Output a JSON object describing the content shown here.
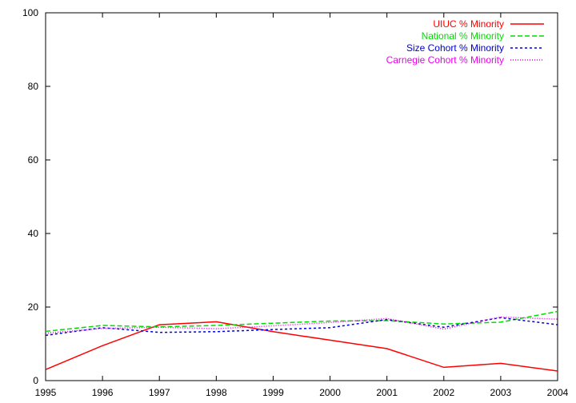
{
  "chart_data": {
    "type": "line",
    "title": "",
    "xlabel": "",
    "ylabel": "",
    "x": [
      1995,
      1996,
      1997,
      1998,
      1999,
      2000,
      2001,
      2002,
      2003,
      2004
    ],
    "xlim": [
      1995,
      2004
    ],
    "ylim": [
      0,
      100
    ],
    "xticks": [
      "1995",
      "1996",
      "1997",
      "1998",
      "1999",
      "2000",
      "2001",
      "2002",
      "2003",
      "2004"
    ],
    "yticks": [
      "0",
      "20",
      "40",
      "60",
      "80",
      "100"
    ],
    "grid": false,
    "legend_position": "top-right",
    "series": [
      {
        "name": "UIUC % Minority",
        "color": "#ff0000",
        "dash": "solid",
        "values": [
          3.0,
          9.5,
          15.2,
          16.0,
          13.3,
          11.0,
          8.7,
          3.6,
          4.7,
          2.6
        ]
      },
      {
        "name": "National % Minority",
        "color": "#00dd00",
        "dash": "dashed",
        "values": [
          13.4,
          15.0,
          14.6,
          15.0,
          15.6,
          16.2,
          16.3,
          15.4,
          15.9,
          18.8
        ]
      },
      {
        "name": "Size Cohort % Minority",
        "color": "#0000cc",
        "dash": "dotted",
        "values": [
          12.3,
          14.4,
          13.1,
          13.3,
          13.9,
          14.4,
          16.6,
          14.5,
          17.1,
          15.2
        ]
      },
      {
        "name": "Carnegie Cohort % Minority",
        "color": "#ee00ee",
        "dash": "fine-dotted",
        "values": [
          12.9,
          14.2,
          14.5,
          14.1,
          14.9,
          15.8,
          16.9,
          14.0,
          17.3,
          16.7
        ]
      }
    ]
  }
}
